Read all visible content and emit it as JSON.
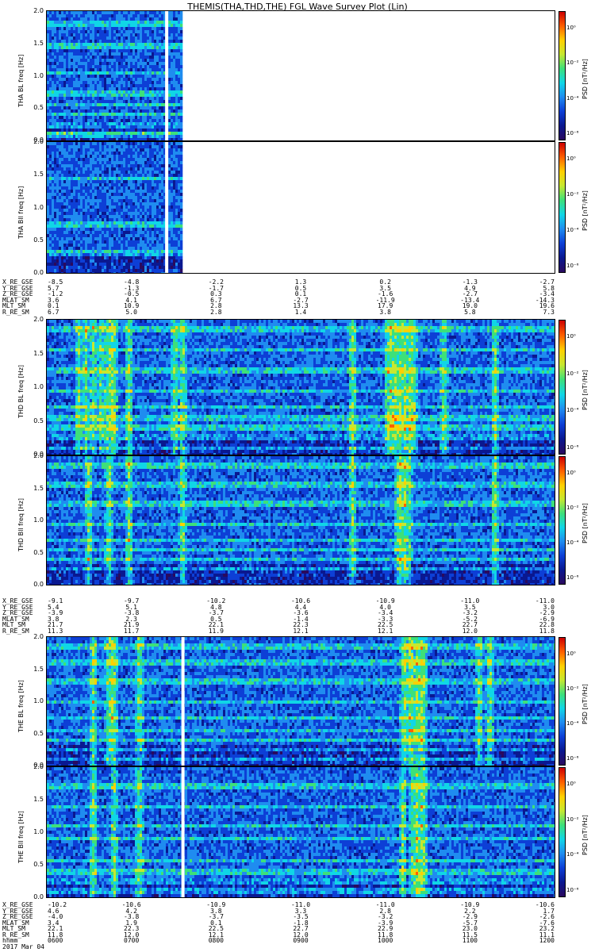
{
  "title": "THEMIS(THA,THD,THE) FGL Wave Survey Plot (Lin)",
  "colorbar": {
    "label": "PSD [nT²/Hz]",
    "ticks": [
      "10⁰",
      "10⁻²",
      "10⁻⁴",
      "10⁻⁶"
    ],
    "colors": [
      "#2a0a5e",
      "#0a1890",
      "#0d3fd6",
      "#1f8cf0",
      "#10d6e6",
      "#3de07a",
      "#c6e830",
      "#ffd000",
      "#ff6000",
      "#cc0000"
    ]
  },
  "chart_data": [
    {
      "type": "heatmap",
      "panel": "THA_BL",
      "ylabel": "THA BL",
      "yunit": "freq [Hz]",
      "ylim": [
        0.0,
        2.0
      ],
      "yticks": [
        "0.0",
        "0.5",
        "1.0",
        "1.5",
        "2.0"
      ],
      "data_extent": [
        0,
        0.265
      ],
      "gap": 0.233,
      "bands": [
        0.08,
        0.12,
        0.2,
        0.26,
        0.4,
        0.55,
        0.7,
        0.75,
        1.05,
        1.45,
        1.8
      ],
      "hot_columns": []
    },
    {
      "type": "heatmap",
      "panel": "THA_Bll",
      "ylabel": "THA Bll",
      "yunit": "freq [Hz]",
      "ylim": [
        0.0,
        2.0
      ],
      "yticks": [
        "0.0",
        "0.5",
        "1.0",
        "1.5",
        "2.0"
      ],
      "data_extent": [
        0,
        0.265
      ],
      "gap": 0.233,
      "bands": [
        0.3,
        0.75,
        1.45
      ],
      "hot_columns": []
    },
    {
      "type": "heatmap",
      "panel": "THD_BL",
      "ylabel": "THD BL",
      "yunit": "freq [Hz]",
      "ylim": [
        0.0,
        2.0
      ],
      "yticks": [
        "0.0",
        "0.5",
        "1.0",
        "1.5",
        "2.0"
      ],
      "data_extent": [
        0,
        1.0
      ],
      "gap": null,
      "bands": [
        0.1,
        0.25,
        0.4,
        0.55,
        0.7,
        0.95,
        1.25,
        1.55,
        1.85
      ],
      "hot_columns": [
        0.06,
        0.075,
        0.09,
        0.105,
        0.12,
        0.13,
        0.16,
        0.25,
        0.265,
        0.6,
        0.67,
        0.68,
        0.69,
        0.7,
        0.71,
        0.72,
        0.78,
        0.88
      ]
    },
    {
      "type": "heatmap",
      "panel": "THD_Bll",
      "ylabel": "THD Bll",
      "yunit": "freq [Hz]",
      "ylim": [
        0.0,
        2.0
      ],
      "yticks": [
        "0.0",
        "0.5",
        "1.0",
        "1.5",
        "2.0"
      ],
      "data_extent": [
        0,
        1.0
      ],
      "gap": null,
      "bands": [
        0.25,
        0.4,
        0.55,
        0.7,
        0.95,
        1.25,
        1.55,
        1.85
      ],
      "hot_columns": [
        0.08,
        0.12,
        0.16,
        0.265,
        0.6,
        0.69,
        0.7,
        0.71,
        0.88
      ]
    },
    {
      "type": "heatmap",
      "panel": "THE_BL",
      "ylabel": "THE BL",
      "yunit": "freq [Hz]",
      "ylim": [
        0.0,
        2.0
      ],
      "yticks": [
        "0.0",
        "0.5",
        "1.0",
        "1.5",
        "2.0"
      ],
      "data_extent": [
        0,
        1.0
      ],
      "gap": 0.265,
      "bands": [
        0.1,
        0.25,
        0.4,
        0.55,
        0.75,
        1.0,
        1.3,
        1.6,
        1.85
      ],
      "hot_columns": [
        0.09,
        0.12,
        0.13,
        0.18,
        0.7,
        0.71,
        0.72,
        0.73,
        0.74,
        0.85,
        0.87
      ]
    },
    {
      "type": "heatmap",
      "panel": "THE_Bll",
      "ylabel": "THE Bll",
      "yunit": "freq [Hz]",
      "ylim": [
        0.0,
        2.0
      ],
      "yticks": [
        "0.0",
        "0.5",
        "1.0",
        "1.5",
        "2.0"
      ],
      "data_extent": [
        0,
        1.0
      ],
      "gap": 0.265,
      "bands": [
        0.1,
        0.25,
        0.4,
        0.55,
        0.9,
        1.1,
        1.4,
        1.7
      ],
      "hot_columns": [
        0.09,
        0.13,
        0.18,
        0.7,
        0.72,
        0.73,
        0.74
      ]
    }
  ],
  "ephemeris": [
    {
      "id": "tha",
      "rows": [
        {
          "label": "X_RE_GSE",
          "values": [
            "-8.5",
            "-4.8",
            "-2.2",
            "1.3",
            "0.2",
            "-1.3",
            "-2.7"
          ]
        },
        {
          "label": "Y_RE_GSE",
          "values": [
            "5.7",
            "-1.3",
            "-1.7",
            "0.5",
            "3.5",
            "4.9",
            "5.8"
          ]
        },
        {
          "label": "Z_RE_GSE",
          "values": [
            "-1.2",
            "-0.5",
            "0.3",
            "0.1",
            "-1.6",
            "-2.7",
            "-3.4"
          ]
        },
        {
          "label": "MLAT_SM",
          "values": [
            "3.6",
            "4.1",
            "6.7",
            "-2.7",
            "-11.9",
            "-13.4",
            "-14.3"
          ]
        },
        {
          "label": "MLT_SM",
          "values": [
            "0.1",
            "10.9",
            "2.8",
            "13.3",
            "17.9",
            "19.0",
            "19.6"
          ]
        },
        {
          "label": "R_RE_SM",
          "values": [
            "6.7",
            "5.0",
            "2.8",
            "1.4",
            "3.8",
            "5.8",
            "7.3"
          ]
        }
      ]
    },
    {
      "id": "thd",
      "rows": [
        {
          "label": "X_RE_GSE",
          "values": [
            "-9.1",
            "-9.7",
            "-10.2",
            "-10.6",
            "-10.9",
            "-11.0",
            "-11.0"
          ]
        },
        {
          "label": "Y_RE_GSE",
          "values": [
            "5.4",
            "5.1",
            "4.8",
            "4.4",
            "4.0",
            "3.5",
            "3.0"
          ]
        },
        {
          "label": "Z_RE_GSE",
          "values": [
            "-3.9",
            "-3.8",
            "-3.7",
            "-3.6",
            "-3.4",
            "-3.2",
            "-2.9"
          ]
        },
        {
          "label": "MLAT_SM",
          "values": [
            "3.8",
            "2.3",
            "0.5",
            "-1.4",
            "-3.3",
            "-5.2",
            "-6.9"
          ]
        },
        {
          "label": "MLT_SM",
          "values": [
            "21.7",
            "21.9",
            "22.1",
            "22.3",
            "22.5",
            "22.7",
            "22.8"
          ]
        },
        {
          "label": "R_RE_SM",
          "values": [
            "11.3",
            "11.7",
            "11.9",
            "12.1",
            "12.1",
            "12.0",
            "11.8"
          ]
        }
      ]
    },
    {
      "id": "the",
      "rows": [
        {
          "label": "X_RE_GSE",
          "values": [
            "-10.2",
            "-10.6",
            "-10.9",
            "-11.0",
            "-11.0",
            "-10.9",
            "-10.6"
          ]
        },
        {
          "label": "Y_RE_GSE",
          "values": [
            "4.6",
            "4.2",
            "3.8",
            "3.3",
            "2.8",
            "2.2",
            "1.7"
          ]
        },
        {
          "label": "Z_RE_GSE",
          "values": [
            "-4.0",
            "-3.8",
            "-3.7",
            "-3.5",
            "-3.2",
            "-2.9",
            "-2.6"
          ]
        },
        {
          "label": "MLAT_SM",
          "values": [
            "3.4",
            "1.9",
            "0.1",
            "-1.8",
            "-3.9",
            "-5.7",
            "-7.6"
          ]
        },
        {
          "label": "MLT_SM",
          "values": [
            "22.1",
            "22.3",
            "22.5",
            "22.7",
            "22.9",
            "23.0",
            "23.2"
          ]
        },
        {
          "label": "R_RE_SM",
          "values": [
            "11.8",
            "12.0",
            "12.1",
            "12.0",
            "11.8",
            "11.5",
            "11.1"
          ]
        },
        {
          "label": "hhmm",
          "values": [
            "0600",
            "0700",
            "0800",
            "0900",
            "1000",
            "1100",
            "1200"
          ]
        }
      ]
    }
  ],
  "date_label": "2017 Mar 04"
}
